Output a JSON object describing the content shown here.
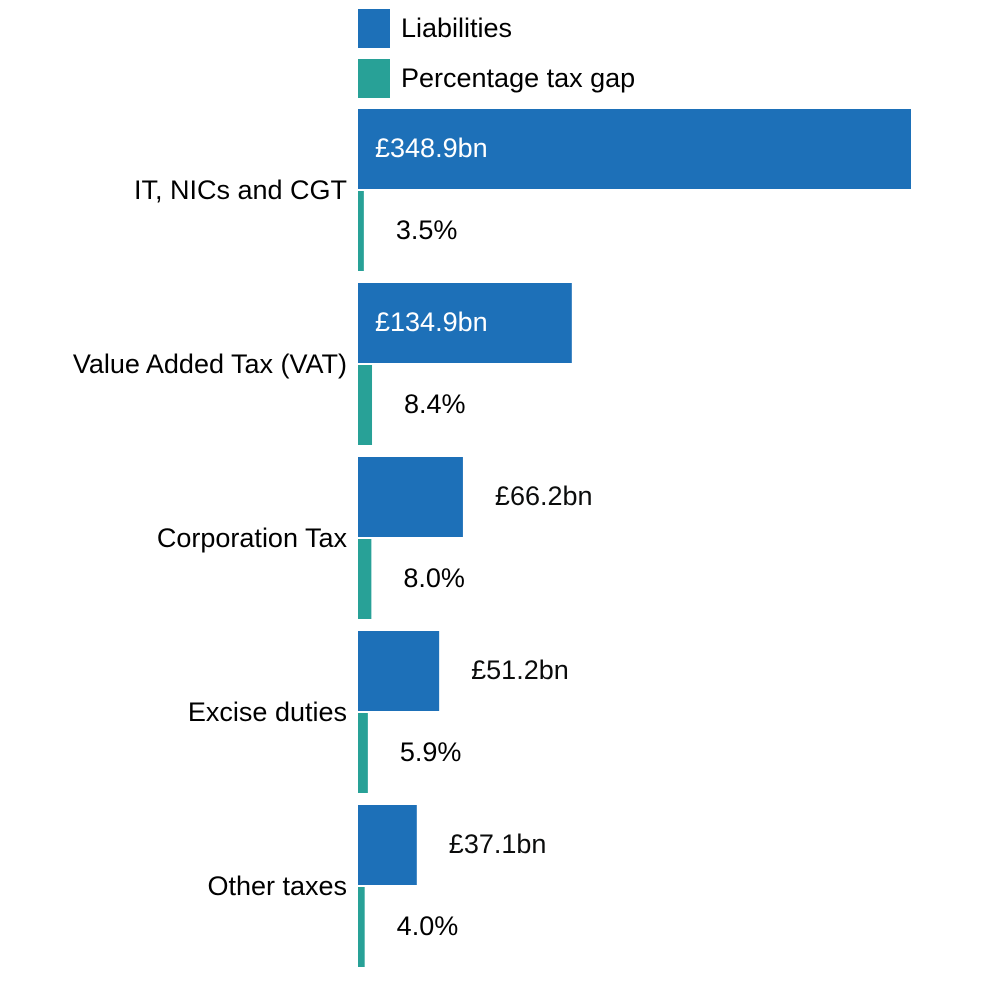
{
  "chart_data": {
    "type": "bar",
    "orientation": "horizontal",
    "categories": [
      "IT, NICs and CGT",
      "Value Added Tax (VAT)",
      "Corporation Tax",
      "Excise duties",
      "Other taxes"
    ],
    "series": [
      {
        "name": "Liabilities",
        "values": [
          348.9,
          134.9,
          66.2,
          51.2,
          37.1
        ],
        "labels": [
          "£348.9bn",
          "£134.9bn",
          "£66.2bn",
          "£51.2bn",
          "£37.1bn"
        ],
        "color": "#1d70b8"
      },
      {
        "name": "Percentage tax gap",
        "values": [
          3.5,
          8.4,
          8.0,
          5.9,
          4.0
        ],
        "labels": [
          "3.5%",
          "8.4%",
          "8.0%",
          "5.9%",
          "4.0%"
        ],
        "color": "#28a197"
      }
    ],
    "legend": "top",
    "grid": false,
    "title": "",
    "xlabel": "",
    "ylabel": ""
  }
}
